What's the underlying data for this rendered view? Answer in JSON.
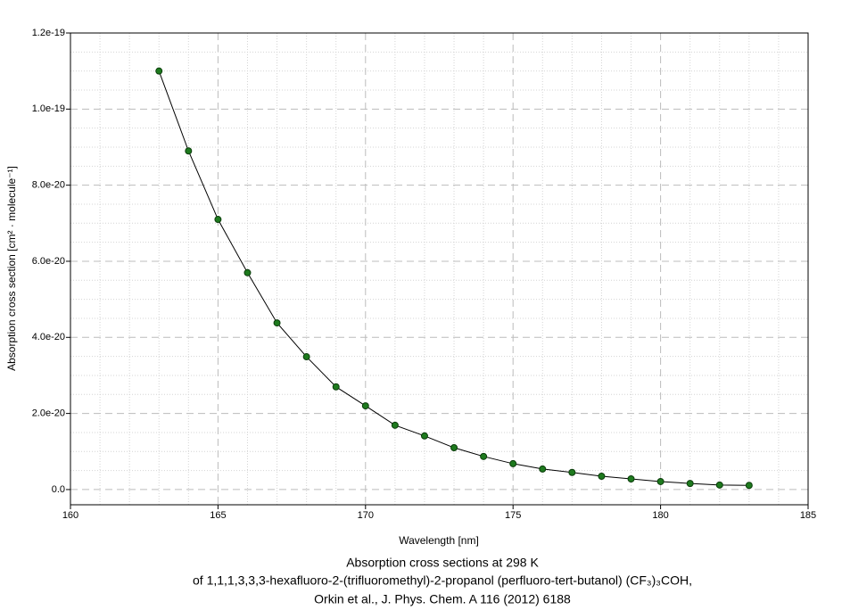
{
  "chart_data": {
    "type": "line",
    "title": [
      "Absorption cross sections at 298 K",
      "of 1,1,1,3,3,3-hexafluoro-2-(trifluoromethyl)-2-propanol (perfluoro-tert-butanol) (CF₃)₃COH,",
      "Orkin et al., J. Phys. Chem. A 116 (2012) 6188"
    ],
    "x_label": "Wavelength [nm]",
    "y_label": "Absorption cross section [cm² · molecule⁻¹]",
    "x": [
      163,
      164,
      165,
      166,
      167,
      168,
      169,
      170,
      171,
      172,
      173,
      174,
      175,
      176,
      177,
      178,
      179,
      180,
      181,
      182,
      183
    ],
    "values": [
      1.1e-19,
      8.9e-20,
      7.1e-20,
      5.7e-20,
      4.38e-20,
      3.49e-20,
      2.7e-20,
      2.2e-20,
      1.69e-20,
      1.41e-20,
      1.1e-20,
      8.7e-21,
      6.8e-21,
      5.4e-21,
      4.5e-21,
      3.5e-21,
      2.8e-21,
      2.1e-21,
      1.6e-21,
      1.2e-21,
      1.1e-21
    ],
    "color": "#1e7a1e",
    "xlim": [
      160,
      185
    ],
    "xticks": [
      160,
      165,
      170,
      175,
      180,
      185
    ],
    "ylim": [
      -4e-21,
      1.2e-19
    ],
    "yticks": [
      {
        "value": 0,
        "label": "0.0"
      },
      {
        "value": 2e-20,
        "label": "2.0e-20"
      },
      {
        "value": 4e-20,
        "label": "4.0e-20"
      },
      {
        "value": 6e-20,
        "label": "6.0e-20"
      },
      {
        "value": 8e-20,
        "label": "8.0e-20"
      },
      {
        "value": 1e-19,
        "label": "1.0e-19"
      },
      {
        "value": 1.2e-19,
        "label": "1.2e-19"
      }
    ],
    "grid": true
  }
}
